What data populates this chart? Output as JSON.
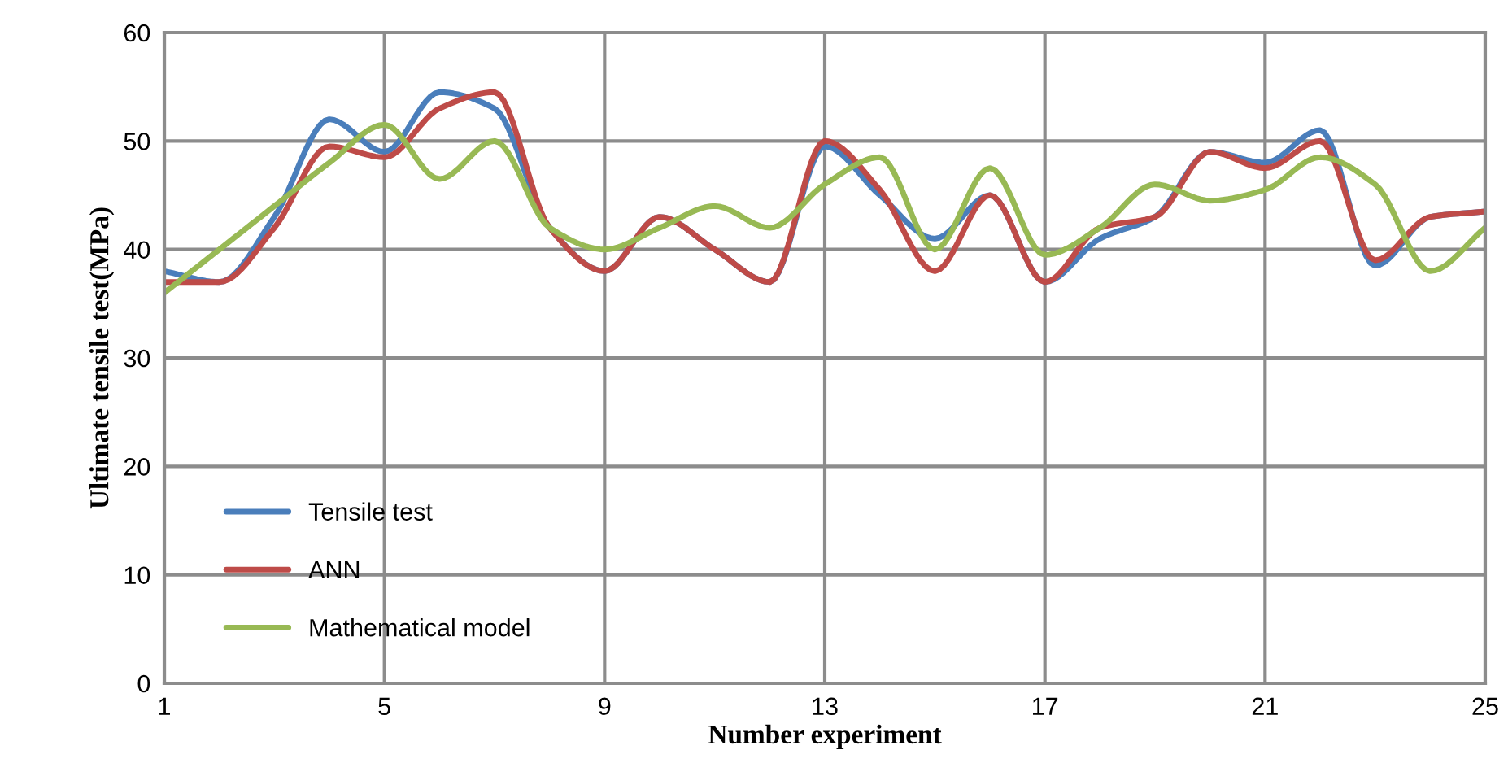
{
  "chart_data": {
    "type": "line",
    "xlabel": "Number experiment",
    "ylabel": "Ultimate tensile test(MPa)",
    "x": [
      1,
      2,
      3,
      4,
      5,
      6,
      7,
      8,
      9,
      10,
      11,
      12,
      13,
      14,
      15,
      16,
      17,
      18,
      19,
      20,
      21,
      22,
      23,
      24,
      25
    ],
    "series": [
      {
        "name": "Tensile test",
        "color": "#4a7ebb",
        "values": [
          38,
          37,
          43,
          52,
          49,
          54.5,
          53,
          42,
          38,
          43,
          40,
          37,
          49.5,
          45,
          41,
          45,
          37,
          41,
          43,
          49,
          48,
          51,
          38.5,
          43,
          43.5
        ]
      },
      {
        "name": "ANN",
        "color": "#be4b48",
        "values": [
          37,
          37,
          42,
          49.5,
          48.5,
          53,
          54.5,
          42,
          38,
          43,
          40,
          37,
          50,
          45.5,
          38,
          45,
          37,
          42,
          43,
          49,
          47.5,
          50,
          39,
          43,
          43.5
        ]
      },
      {
        "name": "Mathematical model",
        "color": "#98b954",
        "values": [
          36,
          40,
          44,
          48,
          51.5,
          46.5,
          50,
          42,
          40,
          42,
          44,
          42,
          46,
          48.5,
          40,
          47.5,
          39.5,
          42,
          46,
          44.5,
          45.5,
          48.5,
          46,
          38,
          42
        ]
      }
    ],
    "xlim": [
      1,
      25
    ],
    "xticks": [
      1,
      5,
      9,
      13,
      17,
      21,
      25
    ],
    "ylim": [
      0,
      60
    ],
    "yticks": [
      0,
      10,
      20,
      30,
      40,
      50,
      60
    ],
    "grid": true,
    "legend": "bottom left",
    "marker": "none",
    "line_style": "solid"
  }
}
